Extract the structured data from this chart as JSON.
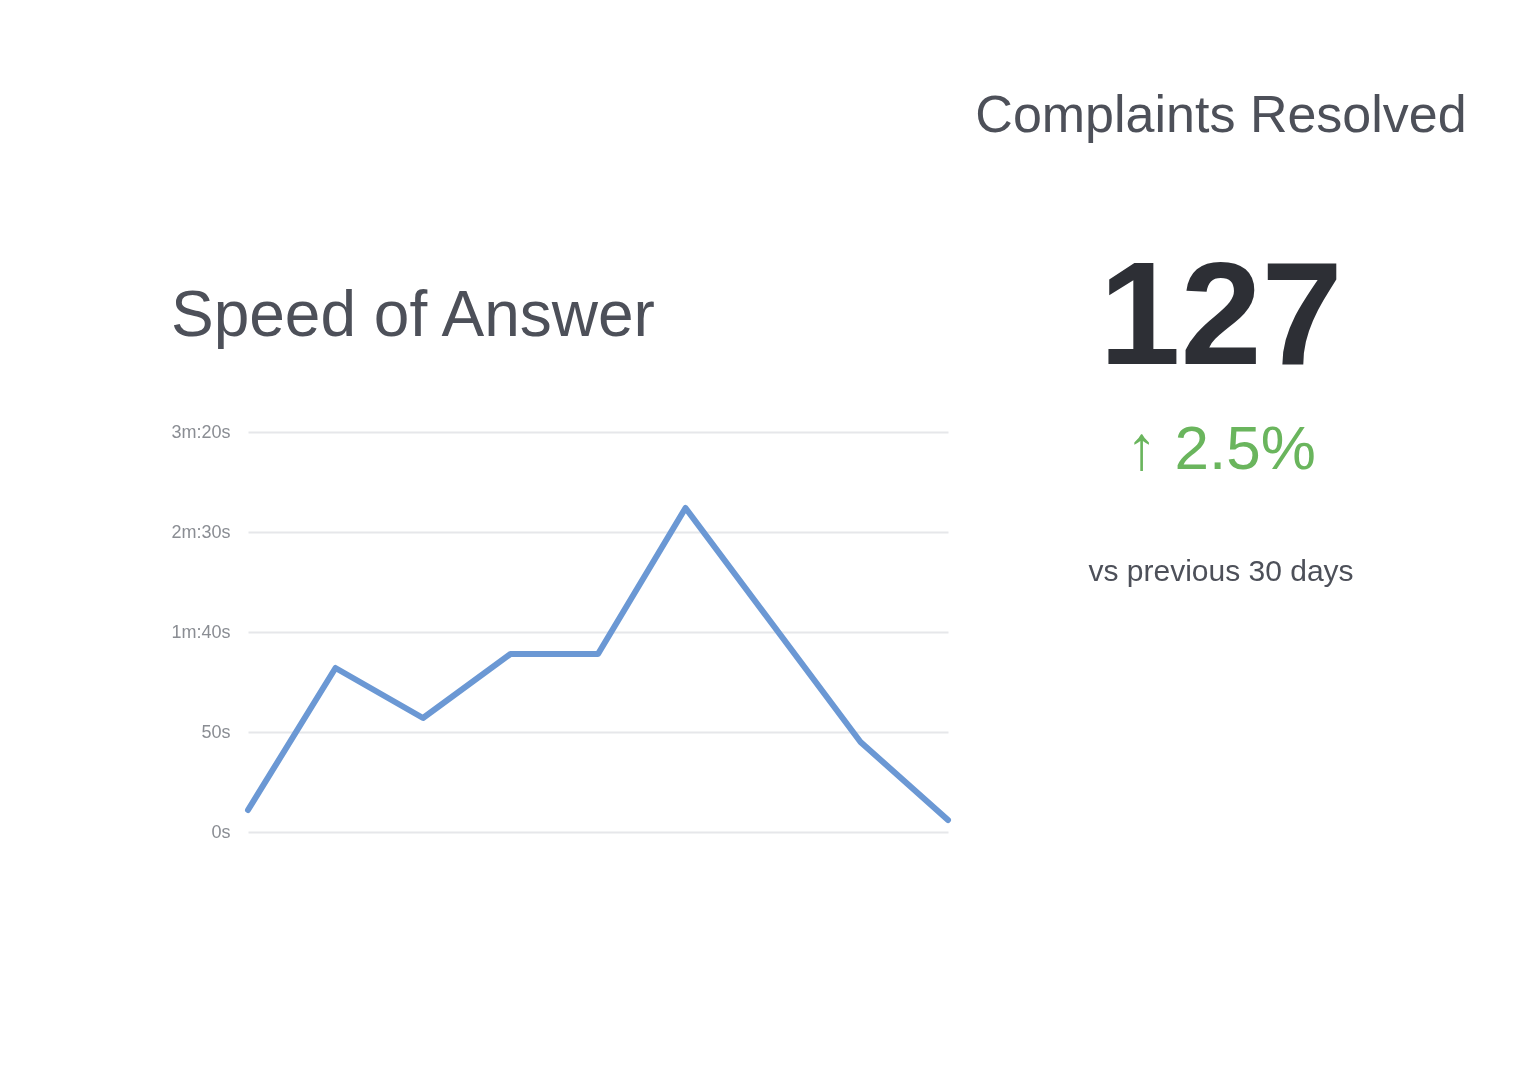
{
  "chart_data": [
    {
      "type": "line",
      "title": "Speed of Answer",
      "categories": [
        null,
        null,
        null,
        null,
        null,
        null,
        null,
        null,
        null
      ],
      "series": [
        {
          "color": "#6b98d4",
          "values": [
            11,
            82,
            57,
            89,
            89,
            162,
            null,
            45,
            6
          ]
        }
      ],
      "ylim": [
        0,
        200
      ],
      "yticks": [
        {
          "value": 0,
          "label": "0s"
        },
        {
          "value": 50,
          "label": "50s"
        },
        {
          "value": 100,
          "label": "1m:40s"
        },
        {
          "value": 150,
          "label": "2m:30s"
        },
        {
          "value": 200,
          "label": "3m:20s"
        }
      ],
      "grid": "y",
      "tick_labels": "y",
      "line_style": "solid"
    },
    {
      "type": "other",
      "title": "Complaints Resolved",
      "annotations": [
        "127",
        "↑ 2.5%",
        "vs previous 30 days"
      ]
    }
  ]
}
